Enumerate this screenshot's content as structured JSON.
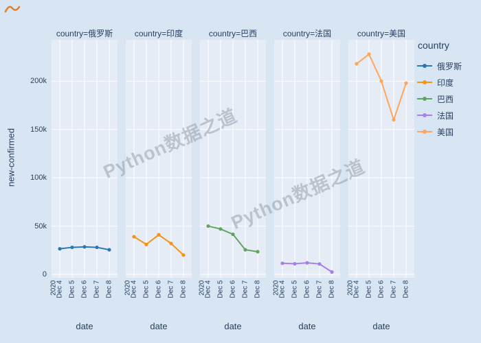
{
  "watermark": {
    "text": "Python数据之道"
  },
  "legend": {
    "title": "country"
  },
  "axes": {
    "x_title": "date",
    "y_title": "new-confirmed",
    "y_ticks": [
      {
        "value": 0,
        "label": "0"
      },
      {
        "value": 50000,
        "label": "50k"
      },
      {
        "value": 100000,
        "label": "100k"
      },
      {
        "value": 150000,
        "label": "150k"
      },
      {
        "value": 200000,
        "label": "200k"
      }
    ],
    "x_ticks": [
      "2020",
      "Dec 4",
      "Dec 5",
      "Dec 6",
      "Dec 7",
      "Dec 8"
    ]
  },
  "chart_data": {
    "type": "line",
    "x": [
      "Dec 4",
      "Dec 5",
      "Dec 6",
      "Dec 7",
      "Dec 8"
    ],
    "x_first_tick_year": "2020",
    "xlabel": "date",
    "ylabel": "new-confirmed",
    "ylim": [
      0,
      240000
    ],
    "grid": true,
    "legend_position": "right",
    "facet_titles": [
      "country=俄罗斯",
      "country=印度",
      "country=巴西",
      "country=法国",
      "country=美国"
    ],
    "series": [
      {
        "name": "俄罗斯",
        "color": "#2878b8",
        "values": [
          26500,
          28000,
          28500,
          28000,
          25500
        ]
      },
      {
        "name": "印度",
        "color": "#f69214",
        "values": [
          39000,
          31000,
          41000,
          32000,
          20000
        ]
      },
      {
        "name": "巴西",
        "color": "#5fa55f",
        "values": [
          50000,
          47000,
          41500,
          25500,
          23500
        ]
      },
      {
        "name": "法国",
        "color": "#a77fe8",
        "values": [
          11500,
          11000,
          12000,
          10800,
          2500
        ]
      },
      {
        "name": "美国",
        "color": "#ffa65c",
        "values": [
          218000,
          228000,
          200000,
          160000,
          198000
        ]
      }
    ]
  }
}
